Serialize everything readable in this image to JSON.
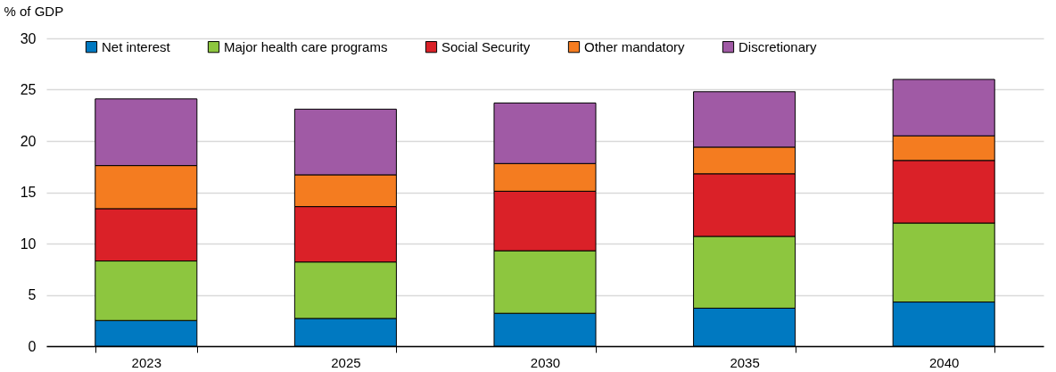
{
  "chart_data": {
    "type": "bar",
    "stacked": true,
    "ylabel": "% of GDP",
    "categories": [
      "2023",
      "2025",
      "2030",
      "2035",
      "2040"
    ],
    "series": [
      {
        "name": "Net interest",
        "color": "#0079c1",
        "values": [
          2.5,
          2.7,
          3.2,
          3.7,
          4.3
        ]
      },
      {
        "name": "Major health care programs",
        "color": "#8dc63f",
        "values": [
          5.8,
          5.5,
          6.1,
          7.0,
          7.7
        ]
      },
      {
        "name": "Social Security",
        "color": "#da2128",
        "values": [
          5.1,
          5.4,
          5.8,
          6.1,
          6.1
        ]
      },
      {
        "name": "Other mandatory",
        "color": "#f47c20",
        "values": [
          4.2,
          3.1,
          2.7,
          2.6,
          2.4
        ]
      },
      {
        "name": "Discretionary",
        "color": "#a05aa5",
        "values": [
          6.5,
          6.4,
          5.9,
          5.4,
          5.5
        ]
      }
    ],
    "ylim": [
      0,
      30
    ],
    "yticks": [
      0,
      5,
      10,
      15,
      20,
      25,
      30
    ],
    "grid": "y",
    "legend": "top"
  }
}
